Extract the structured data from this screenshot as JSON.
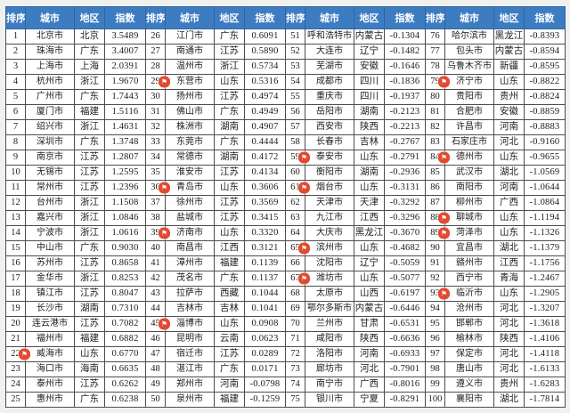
{
  "colors": {
    "page_bg": "#f0f1ee",
    "header_bg": "#3d7cc1",
    "header_text": "#ffffff",
    "header_border": "#2e66a3",
    "grid_border": "#4d4d4d",
    "flag_badge": "#e2492f"
  },
  "table": {
    "headers": [
      "排序",
      "城市",
      "地区",
      "指数"
    ],
    "blocks": 4,
    "rows_per_block": 25,
    "flag_icon": {
      "name": "flag-icon",
      "glyph": "⚑"
    },
    "entries": [
      {
        "rank": "1",
        "city": "北京市",
        "region": "北京",
        "index": "3.5489",
        "flag": false
      },
      {
        "rank": "2",
        "city": "珠海市",
        "region": "广东",
        "index": "3.4007",
        "flag": false
      },
      {
        "rank": "3",
        "city": "上海市",
        "region": "上海",
        "index": "2.0391",
        "flag": false
      },
      {
        "rank": "4",
        "city": "杭州市",
        "region": "浙江",
        "index": "1.9670",
        "flag": false
      },
      {
        "rank": "5",
        "city": "广州市",
        "region": "广东",
        "index": "1.7443",
        "flag": false
      },
      {
        "rank": "6",
        "city": "厦门市",
        "region": "福建",
        "index": "1.5116",
        "flag": false
      },
      {
        "rank": "7",
        "city": "绍兴市",
        "region": "浙江",
        "index": "1.4631",
        "flag": false
      },
      {
        "rank": "8",
        "city": "深圳市",
        "region": "广东",
        "index": "1.3748",
        "flag": false
      },
      {
        "rank": "9",
        "city": "南京市",
        "region": "江苏",
        "index": "1.2807",
        "flag": false
      },
      {
        "rank": "10",
        "city": "无锡市",
        "region": "江苏",
        "index": "1.2595",
        "flag": false
      },
      {
        "rank": "11",
        "city": "常州市",
        "region": "江苏",
        "index": "1.2396",
        "flag": false
      },
      {
        "rank": "12",
        "city": "台州市",
        "region": "浙江",
        "index": "1.1508",
        "flag": false
      },
      {
        "rank": "13",
        "city": "嘉兴市",
        "region": "浙江",
        "index": "1.0846",
        "flag": false
      },
      {
        "rank": "14",
        "city": "宁波市",
        "region": "浙江",
        "index": "1.0616",
        "flag": false
      },
      {
        "rank": "15",
        "city": "中山市",
        "region": "广东",
        "index": "0.9030",
        "flag": false
      },
      {
        "rank": "16",
        "city": "苏州市",
        "region": "江苏",
        "index": "0.8658",
        "flag": false
      },
      {
        "rank": "17",
        "city": "金华市",
        "region": "浙江",
        "index": "0.8253",
        "flag": false
      },
      {
        "rank": "18",
        "city": "镇江市",
        "region": "江苏",
        "index": "0.8047",
        "flag": false
      },
      {
        "rank": "19",
        "city": "长沙市",
        "region": "湖南",
        "index": "0.7310",
        "flag": false
      },
      {
        "rank": "20",
        "city": "连云港市",
        "region": "江苏",
        "index": "0.7082",
        "flag": false
      },
      {
        "rank": "21",
        "city": "福州市",
        "region": "福建",
        "index": "0.6882",
        "flag": false
      },
      {
        "rank": "22",
        "city": "威海市",
        "region": "山东",
        "index": "0.6770",
        "flag": true
      },
      {
        "rank": "23",
        "city": "海口市",
        "region": "海南",
        "index": "0.6635",
        "flag": false
      },
      {
        "rank": "24",
        "city": "泰州市",
        "region": "江苏",
        "index": "0.6262",
        "flag": false
      },
      {
        "rank": "25",
        "city": "惠州市",
        "region": "广东",
        "index": "0.6238",
        "flag": false
      },
      {
        "rank": "26",
        "city": "江门市",
        "region": "广东",
        "index": "0.6091",
        "flag": false
      },
      {
        "rank": "27",
        "city": "南通市",
        "region": "江苏",
        "index": "0.5890",
        "flag": false
      },
      {
        "rank": "28",
        "city": "温州市",
        "region": "浙江",
        "index": "0.5734",
        "flag": false
      },
      {
        "rank": "29",
        "city": "东营市",
        "region": "山东",
        "index": "0.5316",
        "flag": true
      },
      {
        "rank": "30",
        "city": "扬州市",
        "region": "江苏",
        "index": "0.4974",
        "flag": false
      },
      {
        "rank": "31",
        "city": "佛山市",
        "region": "广东",
        "index": "0.4949",
        "flag": false
      },
      {
        "rank": "32",
        "city": "株洲市",
        "region": "湖南",
        "index": "0.4907",
        "flag": false
      },
      {
        "rank": "33",
        "city": "东莞市",
        "region": "广东",
        "index": "0.4444",
        "flag": false
      },
      {
        "rank": "34",
        "city": "常德市",
        "region": "湖南",
        "index": "0.4172",
        "flag": false
      },
      {
        "rank": "35",
        "city": "淮安市",
        "region": "江苏",
        "index": "0.4134",
        "flag": false
      },
      {
        "rank": "36",
        "city": "青岛市",
        "region": "山东",
        "index": "0.3606",
        "flag": true
      },
      {
        "rank": "37",
        "city": "徐州市",
        "region": "江苏",
        "index": "0.3569",
        "flag": false
      },
      {
        "rank": "38",
        "city": "盐城市",
        "region": "江苏",
        "index": "0.3415",
        "flag": false
      },
      {
        "rank": "39",
        "city": "济南市",
        "region": "山东",
        "index": "0.3320",
        "flag": true
      },
      {
        "rank": "40",
        "city": "南昌市",
        "region": "江西",
        "index": "0.3121",
        "flag": false
      },
      {
        "rank": "41",
        "city": "漳州市",
        "region": "福建",
        "index": "0.1139",
        "flag": false
      },
      {
        "rank": "42",
        "city": "茂名市",
        "region": "广东",
        "index": "0.1137",
        "flag": false
      },
      {
        "rank": "43",
        "city": "拉萨市",
        "region": "西藏",
        "index": "0.1044",
        "flag": false
      },
      {
        "rank": "44",
        "city": "吉林市",
        "region": "吉林",
        "index": "0.1041",
        "flag": false
      },
      {
        "rank": "45",
        "city": "淄博市",
        "region": "山东",
        "index": "0.0908",
        "flag": true
      },
      {
        "rank": "46",
        "city": "昆明市",
        "region": "云南",
        "index": "0.0623",
        "flag": false
      },
      {
        "rank": "47",
        "city": "宿迁市",
        "region": "江苏",
        "index": "0.0289",
        "flag": false
      },
      {
        "rank": "48",
        "city": "湛江市",
        "region": "广东",
        "index": "0.0171",
        "flag": false
      },
      {
        "rank": "49",
        "city": "郑州市",
        "region": "河南",
        "index": "-0.0798",
        "flag": false
      },
      {
        "rank": "50",
        "city": "泉州市",
        "region": "福建",
        "index": "-0.1259",
        "flag": false
      },
      {
        "rank": "51",
        "city": "呼和浩特市",
        "region": "内蒙古",
        "index": "-0.1304",
        "flag": false
      },
      {
        "rank": "52",
        "city": "大连市",
        "region": "辽宁",
        "index": "-0.1482",
        "flag": false
      },
      {
        "rank": "53",
        "city": "芜湖市",
        "region": "安徽",
        "index": "-0.1646",
        "flag": false
      },
      {
        "rank": "54",
        "city": "成都市",
        "region": "四川",
        "index": "-0.1836",
        "flag": false
      },
      {
        "rank": "55",
        "city": "重庆市",
        "region": "四川",
        "index": "-0.1937",
        "flag": false
      },
      {
        "rank": "56",
        "city": "岳阳市",
        "region": "湖南",
        "index": "-0.2123",
        "flag": false
      },
      {
        "rank": "57",
        "city": "西安市",
        "region": "陕西",
        "index": "-0.2213",
        "flag": false
      },
      {
        "rank": "58",
        "city": "长春市",
        "region": "吉林",
        "index": "-0.2767",
        "flag": false
      },
      {
        "rank": "59",
        "city": "泰安市",
        "region": "山东",
        "index": "-0.2791",
        "flag": true
      },
      {
        "rank": "60",
        "city": "衡阳市",
        "region": "湖南",
        "index": "-0.2936",
        "flag": false
      },
      {
        "rank": "61",
        "city": "烟台市",
        "region": "山东",
        "index": "-0.3131",
        "flag": true
      },
      {
        "rank": "62",
        "city": "天津市",
        "region": "天津",
        "index": "-0.3292",
        "flag": false
      },
      {
        "rank": "63",
        "city": "九江市",
        "region": "江西",
        "index": "-0.3296",
        "flag": false
      },
      {
        "rank": "64",
        "city": "大庆市",
        "region": "黑龙江",
        "index": "-0.3670",
        "flag": false
      },
      {
        "rank": "65",
        "city": "滨州市",
        "region": "山东",
        "index": "-0.4682",
        "flag": true
      },
      {
        "rank": "66",
        "city": "沈阳市",
        "region": "辽宁",
        "index": "-0.5059",
        "flag": false
      },
      {
        "rank": "67",
        "city": "潍坊市",
        "region": "山东",
        "index": "-0.5077",
        "flag": true
      },
      {
        "rank": "68",
        "city": "太原市",
        "region": "山西",
        "index": "-0.6197",
        "flag": false
      },
      {
        "rank": "69",
        "city": "鄂尔多斯市",
        "region": "内蒙古",
        "index": "-0.6446",
        "flag": false
      },
      {
        "rank": "70",
        "city": "兰州市",
        "region": "甘肃",
        "index": "-0.6531",
        "flag": false
      },
      {
        "rank": "71",
        "city": "咸阳市",
        "region": "陕西",
        "index": "-0.6636",
        "flag": false
      },
      {
        "rank": "72",
        "city": "洛阳市",
        "region": "河南",
        "index": "-0.6933",
        "flag": false
      },
      {
        "rank": "73",
        "city": "廊坊市",
        "region": "河北",
        "index": "-0.7901",
        "flag": false
      },
      {
        "rank": "74",
        "city": "南宁市",
        "region": "广西",
        "index": "-0.8016",
        "flag": false
      },
      {
        "rank": "75",
        "city": "银川市",
        "region": "宁夏",
        "index": "-0.8291",
        "flag": false
      },
      {
        "rank": "76",
        "city": "哈尔滨市",
        "region": "黑龙江",
        "index": "-0.8393",
        "flag": false
      },
      {
        "rank": "77",
        "city": "包头市",
        "region": "内蒙古",
        "index": "-0.8594",
        "flag": false
      },
      {
        "rank": "78",
        "city": "乌鲁木齐市",
        "region": "新疆",
        "index": "-0.8595",
        "flag": false
      },
      {
        "rank": "79",
        "city": "济宁市",
        "region": "山东",
        "index": "-0.8822",
        "flag": true
      },
      {
        "rank": "80",
        "city": "贵阳市",
        "region": "贵州",
        "index": "-0.8824",
        "flag": false
      },
      {
        "rank": "81",
        "city": "合肥市",
        "region": "安徽",
        "index": "-0.8859",
        "flag": false
      },
      {
        "rank": "82",
        "city": "许昌市",
        "region": "河南",
        "index": "-0.8883",
        "flag": false
      },
      {
        "rank": "83",
        "city": "石家庄市",
        "region": "河北",
        "index": "-0.9160",
        "flag": false
      },
      {
        "rank": "84",
        "city": "德州市",
        "region": "山东",
        "index": "-0.9655",
        "flag": true
      },
      {
        "rank": "85",
        "city": "武汉市",
        "region": "湖北",
        "index": "-1.0569",
        "flag": false
      },
      {
        "rank": "86",
        "city": "南阳市",
        "region": "河南",
        "index": "-1.0644",
        "flag": false
      },
      {
        "rank": "87",
        "city": "柳州市",
        "region": "广西",
        "index": "-1.0864",
        "flag": false
      },
      {
        "rank": "88",
        "city": "聊城市",
        "region": "山东",
        "index": "-1.1194",
        "flag": true
      },
      {
        "rank": "89",
        "city": "菏泽市",
        "region": "山东",
        "index": "-1.1326",
        "flag": true
      },
      {
        "rank": "90",
        "city": "宜昌市",
        "region": "湖北",
        "index": "-1.1379",
        "flag": false
      },
      {
        "rank": "91",
        "city": "赣州市",
        "region": "江西",
        "index": "-1.1756",
        "flag": false
      },
      {
        "rank": "92",
        "city": "西宁市",
        "region": "青海",
        "index": "-1.2467",
        "flag": false
      },
      {
        "rank": "93",
        "city": "临沂市",
        "region": "山东",
        "index": "-1.2905",
        "flag": true
      },
      {
        "rank": "94",
        "city": "沧州市",
        "region": "河北",
        "index": "-1.3207",
        "flag": false
      },
      {
        "rank": "95",
        "city": "邯郸市",
        "region": "河北",
        "index": "-1.3618",
        "flag": false
      },
      {
        "rank": "96",
        "city": "榆林市",
        "region": "陕西",
        "index": "-1.4106",
        "flag": false
      },
      {
        "rank": "97",
        "city": "保定市",
        "region": "河北",
        "index": "-1.4118",
        "flag": false
      },
      {
        "rank": "98",
        "city": "唐山市",
        "region": "河北",
        "index": "-1.6133",
        "flag": false
      },
      {
        "rank": "99",
        "city": "遵义市",
        "region": "贵州",
        "index": "-1.6283",
        "flag": false
      },
      {
        "rank": "100",
        "city": "襄阳市",
        "region": "湖北",
        "index": "-1.7814",
        "flag": false
      }
    ]
  }
}
